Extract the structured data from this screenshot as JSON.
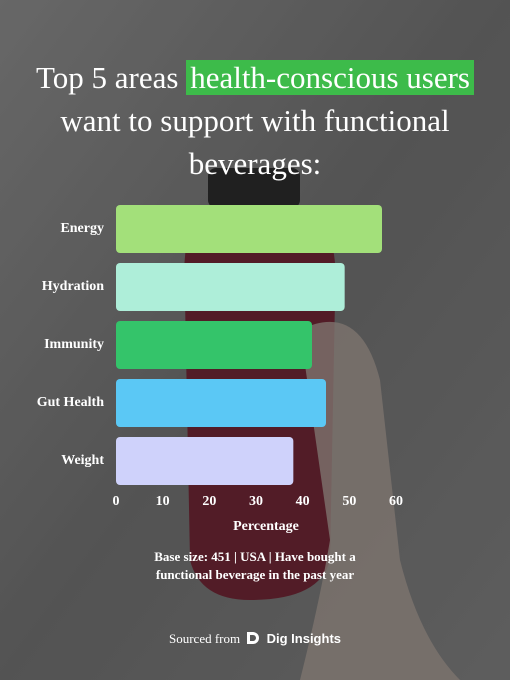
{
  "chart_data": {
    "type": "barh",
    "title_segments": [
      {
        "text": "Top 5 areas",
        "highlight": false
      },
      {
        "text": "health-conscious users",
        "highlight": true
      },
      {
        "text": "want to support with functional beverages:",
        "highlight": false
      }
    ],
    "highlight_color": "#3dbb4a",
    "categories": [
      "Energy",
      "Hydration",
      "Immunity",
      "Gut Health",
      "Weight"
    ],
    "values": [
      57,
      49,
      42,
      45,
      38
    ],
    "colors": [
      "#a3e07a",
      "#aeeed9",
      "#34c46a",
      "#5bc8f5",
      "#cfd2fb"
    ],
    "xlim": [
      0,
      60
    ],
    "xticks": [
      0,
      10,
      20,
      30,
      40,
      50,
      60
    ],
    "xlabel": "Percentage",
    "note": "Base size: 451 | USA | Have bought a functional beverage in the past year",
    "source_prefix": "Sourced from",
    "source_brand": "Dig Insights"
  }
}
